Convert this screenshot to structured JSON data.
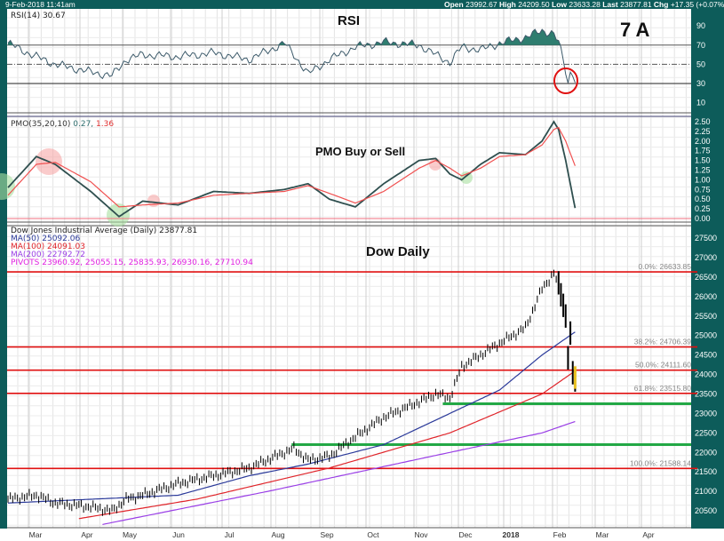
{
  "header": {
    "date": "9-Feb-2018 11:41am",
    "open_label": "Open",
    "open": "23992.67",
    "high_label": "High",
    "high": "24209.50",
    "low_label": "Low",
    "low": "23633.28",
    "last_label": "Last",
    "last": "23877.81",
    "chg_label": "Chg",
    "chg": "+17.35 (+0.07%)"
  },
  "annotations": {
    "rsi_title": "RSI",
    "pmo_title": "PMO Buy or Sell",
    "dow_title": "Dow Daily",
    "tag": "7 A"
  },
  "colors": {
    "teal": "#0d5c5a",
    "price": "#000000",
    "ma50": "#2b3a9a",
    "ma100": "#e0242a",
    "ma200": "#9a3fe6",
    "pivots": "#e020e0",
    "fib": "#e01010",
    "support": "#22a845",
    "pmo": "#2f4f4f",
    "pmo_signal": "#f05050"
  },
  "chart_data": [
    {
      "type": "line",
      "title": "RSI",
      "legend": "RSI(14) 30.67",
      "ylim": [
        0,
        100
      ],
      "yticks": [
        "90",
        "70",
        "50",
        "30",
        "10"
      ],
      "x": [
        0,
        10,
        20,
        35,
        44,
        50,
        57,
        72,
        87,
        102,
        117,
        121,
        127,
        136,
        147,
        159,
        174,
        181,
        187,
        192,
        200,
        208,
        219,
        226,
        231,
        233,
        235,
        237,
        238,
        239,
        240
      ],
      "values": [
        72,
        60,
        50,
        42,
        38,
        55,
        60,
        58,
        62,
        55,
        72,
        60,
        40,
        55,
        68,
        73,
        70,
        60,
        52,
        68,
        65,
        72,
        78,
        85,
        82,
        72,
        55,
        30,
        42,
        42,
        31
      ],
      "levels": [
        70,
        50,
        30
      ]
    },
    {
      "type": "line",
      "title": "PMO Buy or Sell",
      "legend_name": "PMO(35,20,10)",
      "legend_pmo": "0.27,",
      "legend_signal": "1.36",
      "ylim": [
        0,
        2.5
      ],
      "yticks": [
        "2.50",
        "2.25",
        "2.00",
        "1.75",
        "1.50",
        "1.25",
        "1.00",
        "0.75",
        "0.50",
        "0.25",
        "0.00"
      ],
      "x": [
        0,
        12,
        20,
        35,
        47,
        57,
        72,
        87,
        102,
        117,
        127,
        136,
        147,
        159,
        174,
        181,
        187,
        192,
        200,
        208,
        219,
        226,
        231,
        233,
        236,
        240
      ],
      "series": [
        {
          "name": "PMO",
          "values": [
            0.8,
            1.6,
            1.4,
            0.7,
            0.05,
            0.45,
            0.35,
            0.7,
            0.65,
            0.75,
            0.9,
            0.5,
            0.3,
            0.9,
            1.5,
            1.55,
            1.15,
            1.0,
            1.4,
            1.7,
            1.65,
            2.0,
            2.5,
            2.3,
            1.5,
            0.27
          ]
        },
        {
          "name": "Signal",
          "values": [
            0.6,
            1.4,
            1.45,
            0.95,
            0.3,
            0.35,
            0.4,
            0.6,
            0.65,
            0.7,
            0.85,
            0.65,
            0.4,
            0.7,
            1.3,
            1.5,
            1.3,
            1.1,
            1.3,
            1.6,
            1.65,
            1.9,
            2.3,
            2.35,
            2.0,
            1.36
          ]
        }
      ]
    },
    {
      "type": "line",
      "title": "Dow Daily",
      "legend_main": "Dow Jones Industrial Average (Daily) 23877.81",
      "legend_ma50": "MA(50) 25092.06",
      "legend_ma100": "MA(100) 24091.03",
      "legend_ma200": "MA(200) 22792.72",
      "legend_pivots": "PIVOTS 23960.92, 25055.15, 25835.93, 26930.16, 27710.94",
      "ylim": [
        20200,
        27700
      ],
      "yticks": [
        "27500",
        "27000",
        "26500",
        "26000",
        "25500",
        "25000",
        "24500",
        "24000",
        "23500",
        "23000",
        "22500",
        "22000",
        "21500",
        "21000",
        "20500"
      ],
      "xticks": [
        "Mar",
        "Apr",
        "May",
        "Jun",
        "Jul",
        "Aug",
        "Sep",
        "Oct",
        "Nov",
        "Dec",
        "2018",
        "Feb",
        "Mar",
        "Apr"
      ],
      "price": {
        "x": [
          0,
          12,
          20,
          35,
          44,
          50,
          57,
          72,
          87,
          102,
          117,
          121,
          127,
          136,
          147,
          159,
          174,
          181,
          187,
          192,
          200,
          208,
          219,
          226,
          231,
          234,
          236,
          237,
          238,
          239,
          240
        ],
        "values": [
          20800,
          20900,
          20700,
          20600,
          20500,
          20800,
          20900,
          21200,
          21400,
          21600,
          22000,
          22100,
          21800,
          21900,
          22400,
          22900,
          23300,
          23500,
          23400,
          24200,
          24500,
          24800,
          25200,
          26200,
          26600,
          26100,
          25500,
          24500,
          25000,
          24000,
          23878
        ]
      },
      "ma50": {
        "x": [
          0,
          72,
          102,
          127,
          159,
          187,
          208,
          226,
          240
        ],
        "values": [
          20700,
          20900,
          21400,
          21700,
          22200,
          23000,
          23600,
          24500,
          25092
        ]
      },
      "ma100": {
        "x": [
          30,
          80,
          136,
          187,
          226,
          240
        ],
        "values": [
          20300,
          20800,
          21600,
          22500,
          23500,
          24091
        ]
      },
      "ma200": {
        "x": [
          40,
          110,
          187,
          226,
          240
        ],
        "values": [
          20150,
          21000,
          22000,
          22500,
          22793
        ]
      },
      "fibonacci": [
        {
          "label": "0.0%: 26633.85",
          "value": 26633
        },
        {
          "label": "38.2%: 24706.39",
          "value": 24706
        },
        {
          "label": "50.0%: 24111.60",
          "value": 24111
        },
        {
          "label": "61.8%: 23515.80",
          "value": 23515
        },
        {
          "label": "100.0%: 21588.14",
          "value": 21588
        }
      ],
      "support": [
        {
          "value": 23250,
          "from_x": 184
        },
        {
          "value": 22200,
          "from_x": 120
        }
      ]
    }
  ]
}
